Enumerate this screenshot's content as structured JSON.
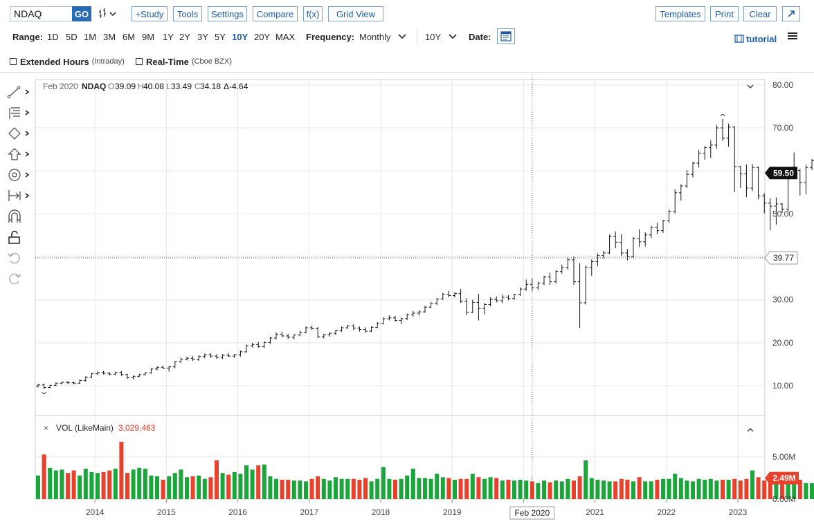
{
  "toolbar": {
    "symbol_value": "NDAQ",
    "go_label": "GO",
    "study_label": "+Study",
    "tools_label": "Tools",
    "settings_label": "Settings",
    "compare_label": "Compare",
    "fx_label": "f(x)",
    "gridview_label": "Grid View",
    "templates_label": "Templates",
    "print_label": "Print",
    "clear_label": "Clear",
    "expand_icon": "expand-icon"
  },
  "range_bar": {
    "range_label": "Range:",
    "ranges": [
      "1D",
      "5D",
      "1M",
      "3M",
      "6M",
      "9M",
      "1Y",
      "2Y",
      "3Y",
      "5Y",
      "10Y",
      "20Y",
      "MAX"
    ],
    "active_range": "10Y",
    "frequency_label": "Frequency:",
    "frequency_value": "Monthly",
    "period_value": "10Y",
    "date_label": "Date:",
    "tutorial_label": "tutorial"
  },
  "options": {
    "extended_hours_label": "Extended Hours",
    "extended_hours_note": "(Intraday)",
    "realtime_label": "Real-Time",
    "realtime_note": "(Cboe BZX)"
  },
  "legend": {
    "date": "Feb 2020",
    "symbol": "NDAQ",
    "o_label": "O",
    "open": "39.09",
    "h_label": "H",
    "high": "40.08",
    "l_label": "L",
    "low": "33.49",
    "c_label": "C",
    "close": "34.18",
    "change": "Δ-4.64"
  },
  "volume_legend": {
    "close_glyph": "×",
    "label": "VOL (LikeMain)",
    "value": "3,029,463"
  },
  "colors": {
    "up": "#1ca53a",
    "down": "#e8412c",
    "accent": "#1c5aa5",
    "price_line": "#111111"
  },
  "chart_data": {
    "type": "ohlc",
    "title": "NDAQ",
    "frequency": "Monthly",
    "price_ylim": [
      0,
      80
    ],
    "price_ticks": [
      10,
      20,
      30,
      40,
      50,
      60,
      70,
      80
    ],
    "volume_ylim": [
      0,
      5.8
    ],
    "volume_ticks": [
      "0.00M",
      "5.00M"
    ],
    "x_tick_labels": [
      "2014",
      "2015",
      "2016",
      "2017",
      "2018",
      "2019",
      "2020",
      "2021",
      "2022",
      "2023"
    ],
    "crosshair_label": "Feb 2020",
    "crosshair_price_label": "39.77",
    "last_price_label": "59.50",
    "last_volume_label": "2.49M",
    "grid": true,
    "start_month": "2013-03",
    "price_series": {
      "name": "NDAQ",
      "ohlc": [
        [
          9.9,
          10.4,
          9.6,
          10.2
        ],
        [
          10.2,
          10.5,
          9.2,
          9.6
        ],
        [
          9.6,
          10.2,
          9.4,
          10.1
        ],
        [
          10.1,
          10.8,
          9.9,
          10.6
        ],
        [
          10.6,
          11.0,
          10.3,
          10.8
        ],
        [
          10.8,
          11.1,
          10.4,
          10.7
        ],
        [
          10.7,
          11.0,
          10.3,
          10.6
        ],
        [
          10.6,
          11.5,
          10.4,
          11.2
        ],
        [
          11.2,
          12.2,
          11.0,
          12.0
        ],
        [
          12.0,
          13.0,
          11.8,
          12.8
        ],
        [
          12.8,
          13.3,
          12.5,
          13.1
        ],
        [
          13.1,
          13.5,
          12.6,
          12.9
        ],
        [
          12.9,
          13.2,
          12.4,
          12.7
        ],
        [
          12.7,
          13.3,
          12.4,
          13.1
        ],
        [
          13.1,
          13.4,
          12.3,
          12.6
        ],
        [
          12.6,
          12.8,
          11.6,
          11.9
        ],
        [
          11.9,
          12.4,
          11.5,
          12.2
        ],
        [
          12.2,
          12.8,
          12.0,
          12.6
        ],
        [
          12.6,
          13.2,
          12.4,
          13.0
        ],
        [
          13.0,
          14.1,
          12.8,
          13.9
        ],
        [
          13.9,
          14.5,
          13.6,
          14.3
        ],
        [
          14.3,
          14.7,
          13.9,
          14.1
        ],
        [
          14.1,
          14.6,
          13.3,
          14.4
        ],
        [
          14.4,
          15.8,
          14.1,
          15.6
        ],
        [
          15.6,
          16.6,
          15.3,
          16.2
        ],
        [
          16.2,
          16.8,
          15.9,
          16.4
        ],
        [
          16.4,
          16.9,
          15.8,
          16.1
        ],
        [
          16.1,
          17.1,
          15.8,
          16.8
        ],
        [
          16.8,
          17.5,
          16.4,
          17.2
        ],
        [
          17.2,
          17.6,
          16.5,
          16.9
        ],
        [
          16.9,
          17.3,
          16.3,
          16.6
        ],
        [
          16.6,
          17.4,
          16.2,
          17.1
        ],
        [
          17.1,
          17.6,
          16.7,
          16.9
        ],
        [
          16.9,
          17.4,
          16.5,
          17.2
        ],
        [
          17.2,
          18.2,
          16.8,
          17.9
        ],
        [
          17.9,
          19.6,
          17.7,
          19.3
        ],
        [
          19.3,
          20.0,
          18.9,
          19.6
        ],
        [
          19.6,
          20.2,
          18.8,
          19.1
        ],
        [
          19.1,
          20.3,
          18.8,
          20.1
        ],
        [
          20.1,
          21.4,
          19.7,
          21.1
        ],
        [
          21.1,
          22.4,
          20.8,
          22.0
        ],
        [
          22.0,
          22.6,
          21.3,
          21.6
        ],
        [
          21.6,
          22.1,
          20.9,
          21.3
        ],
        [
          21.3,
          22.0,
          20.8,
          21.8
        ],
        [
          21.8,
          22.8,
          21.5,
          22.4
        ],
        [
          22.4,
          23.8,
          22.2,
          23.5
        ],
        [
          23.5,
          24.0,
          23.0,
          23.3
        ],
        [
          23.3,
          23.7,
          21.1,
          21.4
        ],
        [
          21.4,
          22.1,
          21.0,
          21.9
        ],
        [
          21.9,
          22.5,
          21.4,
          22.2
        ],
        [
          22.2,
          23.0,
          21.8,
          22.8
        ],
        [
          22.8,
          23.8,
          22.5,
          23.5
        ],
        [
          23.5,
          24.2,
          23.2,
          23.9
        ],
        [
          23.9,
          24.3,
          23.0,
          23.4
        ],
        [
          23.4,
          23.8,
          22.6,
          23.1
        ],
        [
          23.1,
          23.6,
          22.3,
          22.7
        ],
        [
          22.7,
          23.9,
          22.5,
          23.6
        ],
        [
          23.6,
          24.8,
          23.4,
          24.5
        ],
        [
          24.5,
          25.9,
          24.3,
          25.6
        ],
        [
          25.6,
          26.4,
          25.2,
          25.8
        ],
        [
          25.8,
          26.3,
          24.9,
          25.2
        ],
        [
          25.2,
          25.9,
          24.3,
          25.6
        ],
        [
          25.6,
          26.8,
          25.3,
          26.5
        ],
        [
          26.5,
          27.4,
          26.1,
          26.9
        ],
        [
          26.9,
          27.6,
          26.3,
          27.2
        ],
        [
          27.2,
          28.6,
          27.0,
          28.3
        ],
        [
          28.3,
          29.5,
          28.1,
          29.1
        ],
        [
          29.1,
          30.4,
          28.8,
          30.2
        ],
        [
          30.2,
          31.6,
          30.0,
          31.3
        ],
        [
          31.3,
          32.1,
          30.6,
          31.0
        ],
        [
          31.0,
          31.8,
          30.5,
          31.5
        ],
        [
          31.5,
          32.5,
          29.3,
          29.6
        ],
        [
          29.6,
          30.4,
          26.4,
          27.1
        ],
        [
          27.1,
          30.0,
          26.9,
          29.4
        ],
        [
          29.4,
          31.4,
          25.2,
          28.0
        ],
        [
          28.0,
          29.3,
          26.6,
          28.9
        ],
        [
          28.9,
          30.6,
          28.5,
          30.1
        ],
        [
          30.1,
          30.8,
          29.4,
          29.8
        ],
        [
          29.8,
          31.2,
          29.2,
          30.6
        ],
        [
          30.6,
          31.1,
          29.9,
          30.3
        ],
        [
          30.3,
          31.4,
          30.0,
          31.2
        ],
        [
          31.2,
          32.9,
          30.9,
          32.5
        ],
        [
          32.5,
          34.7,
          32.1,
          33.6
        ],
        [
          33.6,
          35.0,
          32.0,
          32.8
        ],
        [
          32.8,
          34.2,
          32.3,
          33.9
        ],
        [
          33.9,
          35.6,
          33.4,
          35.3
        ],
        [
          35.3,
          36.3,
          33.5,
          34.2
        ],
        [
          34.2,
          36.9,
          33.8,
          36.6
        ],
        [
          36.6,
          38.2,
          36.1,
          37.5
        ],
        [
          37.5,
          39.8,
          37.0,
          39.3
        ],
        [
          39.3,
          40.1,
          33.5,
          34.2
        ],
        [
          34.2,
          38.5,
          23.5,
          29.3
        ],
        [
          29.3,
          38.0,
          28.9,
          37.6
        ],
        [
          37.6,
          39.4,
          35.6,
          38.9
        ],
        [
          38.9,
          40.8,
          37.8,
          40.3
        ],
        [
          40.3,
          41.4,
          39.6,
          40.9
        ],
        [
          40.9,
          45.2,
          40.6,
          44.7
        ],
        [
          44.7,
          45.9,
          42.0,
          43.4
        ],
        [
          43.4,
          45.3,
          40.1,
          40.9
        ],
        [
          40.9,
          41.8,
          39.2,
          40.0
        ],
        [
          40.0,
          44.6,
          39.7,
          44.2
        ],
        [
          44.2,
          46.4,
          42.3,
          43.5
        ],
        [
          43.5,
          45.7,
          42.4,
          45.1
        ],
        [
          45.1,
          47.2,
          44.4,
          46.8
        ],
        [
          46.8,
          47.9,
          45.3,
          46.1
        ],
        [
          46.1,
          48.6,
          45.6,
          48.4
        ],
        [
          48.4,
          51.0,
          47.9,
          50.6
        ],
        [
          50.6,
          55.7,
          50.1,
          54.9
        ],
        [
          54.9,
          56.9,
          53.1,
          56.5
        ],
        [
          56.5,
          60.2,
          56.0,
          59.2
        ],
        [
          59.2,
          62.1,
          58.5,
          61.8
        ],
        [
          61.8,
          64.9,
          60.8,
          64.1
        ],
        [
          64.1,
          65.8,
          62.6,
          65.4
        ],
        [
          65.4,
          67.1,
          63.0,
          66.0
        ],
        [
          66.0,
          70.7,
          65.2,
          70.0
        ],
        [
          70.0,
          72.1,
          67.0,
          67.6
        ],
        [
          67.6,
          71.0,
          65.6,
          70.2
        ],
        [
          70.2,
          70.4,
          55.1,
          61.0
        ],
        [
          61.0,
          61.2,
          56.0,
          59.3
        ],
        [
          59.3,
          61.5,
          53.9,
          56.0
        ],
        [
          56.0,
          61.6,
          55.3,
          60.8
        ],
        [
          60.8,
          61.0,
          53.4,
          54.2
        ],
        [
          54.2,
          54.8,
          50.1,
          52.5
        ],
        [
          52.5,
          53.6,
          46.2,
          51.8
        ],
        [
          51.8,
          53.8,
          47.5,
          52.3
        ],
        [
          52.3,
          52.5,
          50.2,
          51.1
        ],
        [
          51.1,
          60.6,
          50.6,
          59.8
        ],
        [
          59.8,
          64.3,
          59.2,
          60.1
        ],
        [
          60.1,
          60.5,
          54.3,
          57.3
        ],
        [
          57.3,
          61.4,
          54.5,
          60.8
        ],
        [
          60.8,
          62.8,
          60.2,
          62.4
        ],
        [
          62.4,
          64.7,
          60.0,
          60.6
        ],
        [
          60.6,
          68.4,
          60.1,
          68.0
        ],
        [
          68.0,
          68.9,
          59.8,
          60.6
        ],
        [
          60.6,
          62.7,
          56.0,
          60.4
        ],
        [
          60.4,
          61.0,
          59.3,
          59.5
        ]
      ]
    },
    "volume_series": {
      "name": "VOL (LikeMain)",
      "unit": "M",
      "values": [
        2.8,
        5.3,
        3.7,
        3.4,
        3.5,
        3.1,
        3.4,
        2.8,
        3.6,
        3.2,
        3.1,
        3.2,
        3.4,
        3.6,
        6.8,
        3.1,
        3.5,
        3.7,
        3.6,
        2.8,
        2.7,
        2.3,
        2.7,
        3.1,
        3.5,
        2.6,
        2.7,
        2.8,
        2.4,
        2.6,
        4.6,
        3.1,
        2.9,
        3.2,
        3.0,
        4.0,
        3.5,
        4.0,
        4.1,
        2.7,
        2.4,
        2.3,
        2.3,
        2.2,
        2.2,
        2.1,
        2.4,
        2.7,
        2.4,
        2.2,
        2.6,
        2.4,
        2.4,
        2.4,
        2.3,
        2.5,
        2.1,
        2.4,
        3.8,
        2.4,
        2.3,
        2.4,
        2.8,
        3.6,
        2.5,
        2.5,
        2.4,
        3.0,
        2.6,
        2.5,
        2.3,
        2.4,
        2.4,
        3.0,
        2.6,
        2.4,
        2.6,
        2.5,
        2.2,
        2.3,
        2.2,
        2.3,
        2.2,
        2.1,
        1.9,
        2.2,
        2.0,
        2.2,
        2.1,
        2.4,
        2.2,
        2.7,
        4.6,
        2.5,
        2.3,
        2.2,
        2.1,
        2.1,
        2.4,
        2.3,
        2.1,
        2.6,
        2.1,
        2.1,
        2.3,
        2.4,
        2.4,
        3.0,
        2.5,
        2.2,
        2.1,
        2.4,
        2.3,
        2.4,
        2.2,
        2.3,
        2.3,
        2.4,
        2.2,
        2.4,
        3.4,
        2.6,
        2.2,
        2.4,
        2.7,
        2.9,
        2.7,
        2.5,
        2.3,
        1.9,
        1.9,
        2.0,
        2.0,
        2.0,
        2.1,
        2.5,
        2.1,
        2.4
      ]
    }
  }
}
